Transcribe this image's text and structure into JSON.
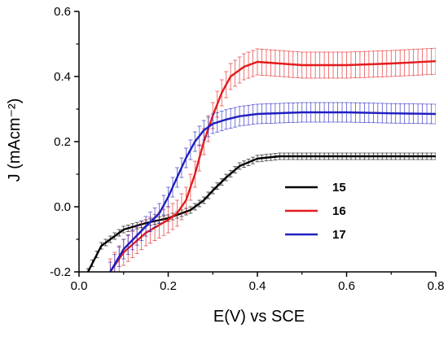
{
  "chart_data": {
    "type": "line",
    "xlabel": "E(V) vs SCE",
    "ylabel": "J (mAcm⁻²)",
    "xlim": [
      0.0,
      0.8
    ],
    "ylim": [
      -0.2,
      0.6
    ],
    "x_ticks": [
      0.0,
      0.2,
      0.4,
      0.6,
      0.8
    ],
    "x_tick_labels": [
      "0.0",
      "0.2",
      "0.4",
      "0.6",
      "0.8"
    ],
    "y_ticks": [
      -0.2,
      0.0,
      0.2,
      0.4,
      0.6
    ],
    "y_tick_labels": [
      "-0.2",
      "0.0",
      "0.2",
      "0.4",
      "0.6"
    ],
    "grid": false,
    "legend_position": "center-right",
    "series": [
      {
        "name": "15",
        "color": "#000000",
        "x": [
          0.02,
          0.05,
          0.1,
          0.15,
          0.2,
          0.25,
          0.28,
          0.3,
          0.33,
          0.36,
          0.4,
          0.45,
          0.5,
          0.6,
          0.7,
          0.8
        ],
        "y": [
          -0.2,
          -0.12,
          -0.07,
          -0.05,
          -0.035,
          -0.01,
          0.02,
          0.05,
          0.09,
          0.125,
          0.148,
          0.155,
          0.155,
          0.155,
          0.155,
          0.155
        ],
        "error": 0.01
      },
      {
        "name": "16",
        "color": "#e41a1c",
        "x": [
          0.07,
          0.1,
          0.15,
          0.2,
          0.22,
          0.24,
          0.26,
          0.28,
          0.3,
          0.32,
          0.34,
          0.37,
          0.4,
          0.45,
          0.5,
          0.6,
          0.7,
          0.8
        ],
        "y": [
          -0.2,
          -0.14,
          -0.08,
          -0.04,
          -0.02,
          0.02,
          0.1,
          0.2,
          0.28,
          0.35,
          0.4,
          0.43,
          0.445,
          0.44,
          0.435,
          0.435,
          0.44,
          0.447
        ],
        "error": 0.04
      },
      {
        "name": "17",
        "color": "#1f1fbf",
        "x": [
          0.07,
          0.1,
          0.15,
          0.18,
          0.2,
          0.22,
          0.24,
          0.26,
          0.28,
          0.3,
          0.33,
          0.36,
          0.4,
          0.5,
          0.6,
          0.7,
          0.8
        ],
        "y": [
          -0.2,
          -0.13,
          -0.06,
          -0.02,
          0.03,
          0.09,
          0.15,
          0.2,
          0.235,
          0.255,
          0.268,
          0.278,
          0.285,
          0.29,
          0.29,
          0.287,
          0.285
        ],
        "error": 0.03
      }
    ]
  }
}
